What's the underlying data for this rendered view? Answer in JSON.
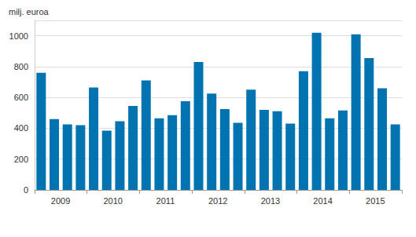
{
  "chart_data": {
    "type": "bar",
    "ylabel": "milj. euroa",
    "categories": [
      null,
      "2009",
      null,
      null,
      null,
      "2010",
      null,
      null,
      null,
      "2011",
      null,
      null,
      null,
      "2012",
      null,
      null,
      null,
      "2013",
      null,
      null,
      null,
      "2014",
      null,
      null,
      null,
      "2015",
      null,
      null
    ],
    "values": [
      760,
      460,
      425,
      420,
      665,
      385,
      445,
      545,
      710,
      465,
      485,
      575,
      830,
      625,
      525,
      435,
      650,
      520,
      510,
      430,
      770,
      1020,
      465,
      515,
      1010,
      855,
      660,
      425
    ],
    "color": "#0073b0",
    "ylim": [
      0,
      1100
    ],
    "yticks": [
      0,
      200,
      400,
      600,
      800,
      1000
    ],
    "grid": true
  }
}
